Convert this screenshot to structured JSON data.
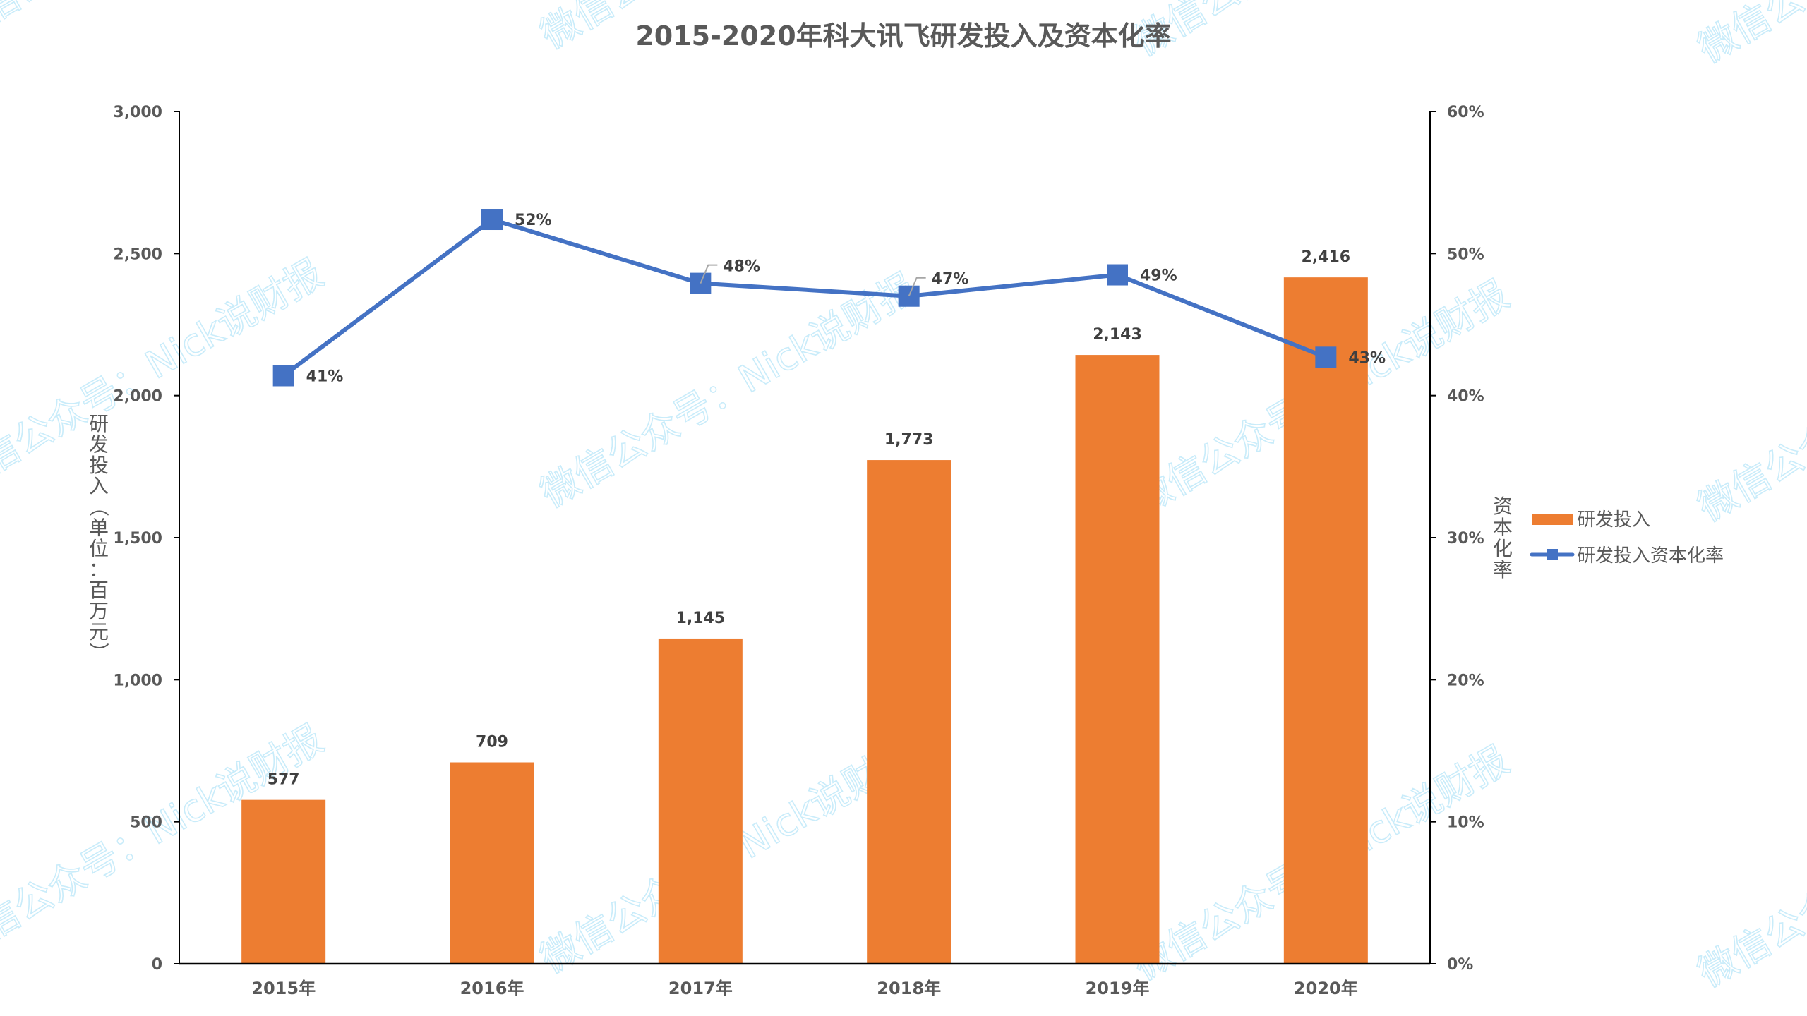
{
  "chart_data": {
    "type": "bar+line",
    "title": "2015-2020年科大讯飞研发投入及资本化率",
    "categories": [
      "2015年",
      "2016年",
      "2017年",
      "2018年",
      "2019年",
      "2020年"
    ],
    "series": [
      {
        "name": "研发投入",
        "type": "bar",
        "axis": "left",
        "color": "#ED7D31",
        "values": [
          577,
          709,
          1145,
          1773,
          2143,
          2416
        ],
        "labels": [
          "577",
          "709",
          "1,145",
          "1,773",
          "2,143",
          "2,416"
        ]
      },
      {
        "name": "研发投入资本化率",
        "type": "line",
        "axis": "right",
        "color": "#4472C4",
        "marker": "square",
        "values": [
          41.4,
          52.4,
          47.9,
          47.0,
          48.5,
          42.7
        ],
        "labels": [
          "41%",
          "52%",
          "48%",
          "47%",
          "49%",
          "43%"
        ]
      }
    ],
    "ylabel": "研发投入（单位：百万元）",
    "ylabel_right": "资本化率",
    "xlabel": "",
    "ylim": [
      0,
      3000
    ],
    "ylim_right": [
      0,
      60
    ],
    "yticks": [
      "0",
      "500",
      "1,000",
      "1,500",
      "2,000",
      "2,500",
      "3,000"
    ],
    "yticks_right": [
      "0%",
      "10%",
      "20%",
      "30%",
      "40%",
      "50%",
      "60%"
    ],
    "grid": false,
    "legend_position": "right"
  },
  "legend": {
    "bar_label": "研发投入",
    "line_label": "研发投入资本化率"
  },
  "watermark": {
    "text": "微信公众号：Nick说财报",
    "color": "#c9ecfa"
  }
}
